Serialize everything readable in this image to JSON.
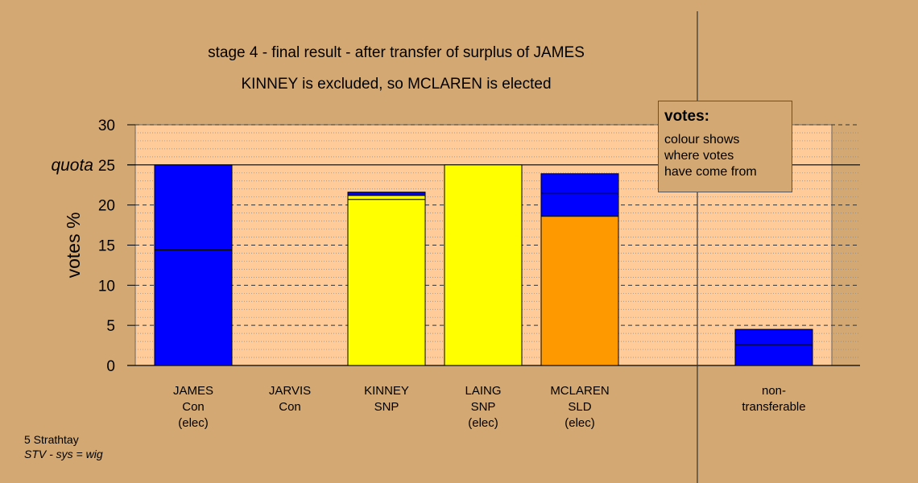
{
  "titles": {
    "line1": "stage 4 - final result - after transfer of surplus of JAMES",
    "line2": "KINNEY is excluded, so MCLAREN is elected"
  },
  "legend": {
    "title": "votes:",
    "lines": [
      "colour shows",
      "where votes",
      "have come from"
    ]
  },
  "footer": {
    "line1": "5 Strathtay",
    "line2": "STV - sys = wig"
  },
  "colors": {
    "background": "#d4a872",
    "plot_area": "#ffcc99",
    "Con": "#0000ff",
    "SNP": "#ffff00",
    "SLD": "#ff9900"
  },
  "chart_data": {
    "type": "bar",
    "stacked": true,
    "ylabel": "votes %",
    "ylim": [
      0,
      30
    ],
    "yticks": [
      0,
      5,
      10,
      15,
      20,
      25,
      30
    ],
    "quota": {
      "label": "quota",
      "value": 25
    },
    "categories": [
      {
        "lines": [
          "JAMES",
          "Con",
          "(elec)"
        ]
      },
      {
        "lines": [
          "JARVIS",
          "Con"
        ]
      },
      {
        "lines": [
          "KINNEY",
          "SNP"
        ]
      },
      {
        "lines": [
          "LAING",
          "SNP",
          "(elec)"
        ]
      },
      {
        "lines": [
          "MCLAREN",
          "SLD",
          "(elec)"
        ]
      },
      {
        "lines": [
          "non-",
          "transferable"
        ]
      }
    ],
    "bars": [
      {
        "segments": [
          {
            "party": "Con",
            "value": 14.4
          },
          {
            "party": "Con",
            "value": 10.6
          }
        ]
      },
      {
        "segments": []
      },
      {
        "segments": [
          {
            "party": "SNP",
            "value": 20.7
          },
          {
            "party": "SNP",
            "value": 0.5
          },
          {
            "party": "Con",
            "value": 0.4
          }
        ]
      },
      {
        "segments": [
          {
            "party": "SNP",
            "value": 25.0
          }
        ]
      },
      {
        "segments": [
          {
            "party": "SLD",
            "value": 18.6
          },
          {
            "party": "Con",
            "value": 2.9
          },
          {
            "party": "Con",
            "value": 2.4
          }
        ]
      },
      {
        "segments": [
          {
            "party": "Con",
            "value": 2.6
          },
          {
            "party": "Con",
            "value": 1.9
          }
        ]
      }
    ]
  }
}
